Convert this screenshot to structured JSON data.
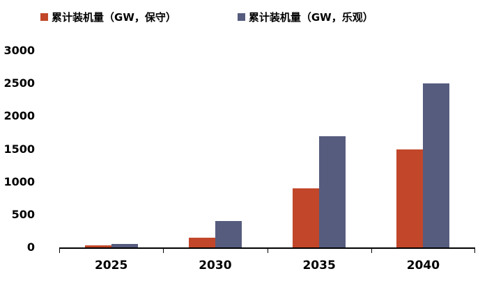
{
  "chart_data": {
    "type": "bar",
    "categories": [
      "2025",
      "2030",
      "2035",
      "2040"
    ],
    "series": [
      {
        "name": "累计装机量（GW，保守）",
        "color": "#C2472A",
        "values": [
          30,
          150,
          900,
          1500
        ]
      },
      {
        "name": "累计装机量（GW，乐观）",
        "color": "#565C7E",
        "values": [
          50,
          400,
          1700,
          2500
        ]
      }
    ],
    "ylim": [
      0,
      3000
    ],
    "yticks": [
      0,
      500,
      1000,
      1500,
      2000,
      2500,
      3000
    ],
    "grid": false,
    "legend_position": "top",
    "title": ""
  }
}
